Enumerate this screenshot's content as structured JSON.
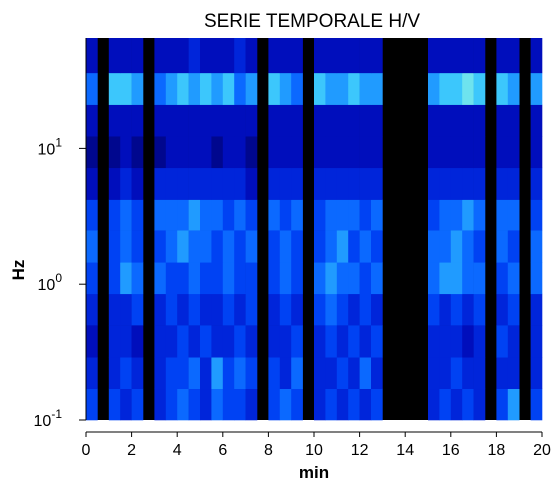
{
  "chart_data": {
    "type": "heatmap",
    "title": "SERIE TEMPORALE H/V",
    "x_label": "min",
    "y_label": "Hz",
    "xlim": [
      0,
      20
    ],
    "ylim": [
      0.1,
      65
    ],
    "y_scale": "log",
    "xticks": [
      0,
      2,
      4,
      6,
      8,
      10,
      12,
      14,
      16,
      18,
      20
    ],
    "yticks": [
      {
        "value": 0.1,
        "label": "10",
        "exponent": "-1"
      },
      {
        "value": 1,
        "label": "10",
        "exponent": "0"
      },
      {
        "value": 10,
        "label": "10",
        "exponent": "1"
      }
    ],
    "x_bins": [
      0,
      0.5,
      1,
      1.5,
      2,
      2.5,
      3,
      3.5,
      4,
      4.5,
      5,
      5.5,
      6,
      6.5,
      7,
      7.5,
      8,
      8.5,
      9,
      9.5,
      10,
      10.5,
      11,
      11.5,
      12,
      12.5,
      13,
      13.5,
      14,
      14.5,
      15,
      15.5,
      16,
      16.5,
      17,
      17.5,
      18,
      18.5,
      19,
      19.5,
      20
    ],
    "y_bins": [
      0.1,
      0.17,
      0.29,
      0.5,
      0.85,
      1.45,
      2.5,
      4.2,
      7.2,
      12.3,
      21,
      36,
      65
    ],
    "zlim": [
      0,
      9
    ],
    "colormap": [
      "#000060",
      "#0010c8",
      "#0050ff",
      "#30c0ff",
      "#a0ffe0"
    ],
    "missing_color": "#000000",
    "values": [
      [
        4,
        null,
        4,
        3,
        4,
        null,
        3,
        4,
        5,
        4,
        3,
        5,
        4,
        4,
        3,
        null,
        4,
        5,
        4,
        null,
        3,
        4,
        3,
        4,
        3,
        4,
        null,
        null,
        null,
        null,
        3,
        4,
        3,
        4,
        3,
        null,
        4,
        6,
        null,
        4
      ],
      [
        3,
        null,
        3,
        4,
        3,
        null,
        3,
        4,
        4,
        5,
        3,
        6,
        4,
        5,
        4,
        null,
        4,
        3,
        5,
        null,
        3,
        3,
        4,
        3,
        5,
        3,
        null,
        null,
        null,
        null,
        3,
        3,
        4,
        3,
        3,
        null,
        3,
        3,
        null,
        3
      ],
      [
        2,
        null,
        3,
        3,
        2,
        null,
        3,
        3,
        4,
        3,
        4,
        3,
        3,
        4,
        3,
        null,
        3,
        3,
        4,
        null,
        3,
        4,
        3,
        4,
        3,
        4,
        null,
        null,
        null,
        null,
        3,
        3,
        3,
        2,
        3,
        null,
        4,
        3,
        null,
        3
      ],
      [
        3,
        null,
        3,
        3,
        4,
        null,
        3,
        4,
        3,
        4,
        3,
        3,
        4,
        3,
        4,
        null,
        3,
        4,
        3,
        null,
        4,
        5,
        4,
        3,
        4,
        3,
        null,
        null,
        null,
        null,
        4,
        3,
        4,
        3,
        4,
        null,
        3,
        4,
        null,
        3
      ],
      [
        4,
        null,
        4,
        6,
        5,
        null,
        5,
        4,
        4,
        5,
        4,
        4,
        5,
        4,
        4,
        null,
        4,
        5,
        4,
        null,
        5,
        6,
        5,
        5,
        4,
        5,
        null,
        null,
        null,
        null,
        5,
        6,
        6,
        5,
        5,
        null,
        4,
        5,
        null,
        5
      ],
      [
        5,
        null,
        4,
        5,
        4,
        null,
        4,
        5,
        6,
        5,
        5,
        4,
        5,
        4,
        5,
        null,
        4,
        5,
        4,
        null,
        4,
        5,
        6,
        4,
        5,
        4,
        null,
        null,
        null,
        null,
        5,
        5,
        6,
        5,
        4,
        null,
        5,
        4,
        null,
        5
      ],
      [
        4,
        null,
        4,
        5,
        4,
        null,
        5,
        5,
        5,
        6,
        5,
        5,
        4,
        5,
        4,
        null,
        5,
        4,
        5,
        null,
        4,
        5,
        5,
        5,
        4,
        5,
        null,
        null,
        null,
        null,
        4,
        5,
        5,
        6,
        5,
        null,
        5,
        5,
        null,
        4
      ],
      [
        2,
        null,
        2,
        3,
        2,
        null,
        3,
        3,
        3,
        3,
        3,
        3,
        3,
        3,
        2,
        null,
        3,
        3,
        3,
        null,
        3,
        3,
        3,
        3,
        3,
        3,
        null,
        null,
        null,
        null,
        3,
        3,
        3,
        3,
        3,
        null,
        3,
        3,
        null,
        3
      ],
      [
        1,
        null,
        1,
        2,
        1,
        null,
        1,
        2,
        2,
        2,
        2,
        1,
        2,
        2,
        1,
        null,
        2,
        2,
        2,
        null,
        2,
        2,
        2,
        2,
        2,
        2,
        null,
        null,
        null,
        null,
        2,
        2,
        2,
        2,
        2,
        null,
        2,
        2,
        null,
        2
      ],
      [
        2,
        null,
        2,
        2,
        2,
        null,
        2,
        2,
        2,
        2,
        2,
        2,
        2,
        2,
        2,
        null,
        2,
        2,
        2,
        null,
        2,
        2,
        2,
        2,
        2,
        2,
        null,
        null,
        null,
        null,
        2,
        2,
        2,
        2,
        2,
        null,
        2,
        2,
        null,
        2
      ],
      [
        5,
        null,
        7,
        7,
        6,
        null,
        5,
        6,
        7,
        6,
        7,
        6,
        7,
        5,
        6,
        null,
        7,
        6,
        5,
        null,
        7,
        6,
        6,
        7,
        6,
        6,
        null,
        null,
        null,
        null,
        6,
        7,
        7,
        8,
        7,
        null,
        7,
        6,
        null,
        6
      ],
      [
        2,
        null,
        2,
        2,
        2,
        null,
        2,
        2,
        2,
        3,
        2,
        2,
        2,
        3,
        2,
        null,
        2,
        2,
        2,
        null,
        2,
        2,
        2,
        2,
        2,
        2,
        null,
        null,
        null,
        null,
        2,
        2,
        2,
        2,
        2,
        null,
        2,
        2,
        null,
        2
      ]
    ]
  }
}
